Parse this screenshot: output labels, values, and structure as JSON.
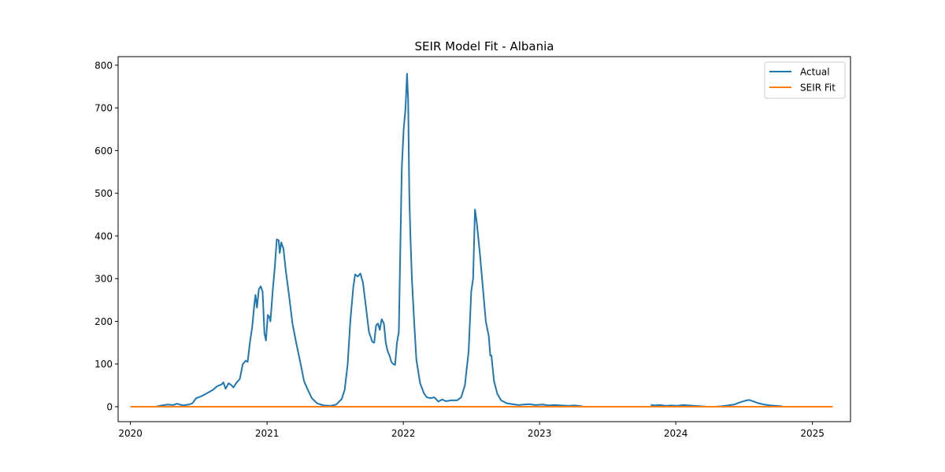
{
  "chart_data": {
    "type": "line",
    "title": "SEIR Model Fit - Albania",
    "xlabel": "",
    "ylabel": "",
    "x_axis": {
      "type": "date",
      "range": [
        "2019-11-29",
        "2025-04-13"
      ],
      "ticks": [
        {
          "date": "2020-01-01",
          "label": "2020"
        },
        {
          "date": "2021-01-01",
          "label": "2021"
        },
        {
          "date": "2022-01-01",
          "label": "2022"
        },
        {
          "date": "2023-01-01",
          "label": "2023"
        },
        {
          "date": "2024-01-01",
          "label": "2024"
        },
        {
          "date": "2025-01-01",
          "label": "2025"
        }
      ]
    },
    "y_axis": {
      "range": [
        -35,
        820
      ],
      "ticks": [
        0,
        100,
        200,
        300,
        400,
        500,
        600,
        700,
        800
      ]
    },
    "grid": false,
    "legend": {
      "placement": "top-right",
      "entries": [
        "Actual",
        "SEIR Fit"
      ]
    },
    "series": [
      {
        "name": "Actual",
        "color": "#1f77b4",
        "segments": [
          [
            [
              "2020-03-09",
              0
            ],
            [
              "2020-03-25",
              3
            ],
            [
              "2020-04-10",
              5
            ],
            [
              "2020-04-25",
              4
            ],
            [
              "2020-05-05",
              7
            ],
            [
              "2020-05-20",
              3
            ],
            [
              "2020-06-05",
              5
            ],
            [
              "2020-06-15",
              8
            ],
            [
              "2020-06-25",
              20
            ],
            [
              "2020-07-10",
              25
            ],
            [
              "2020-07-25",
              32
            ],
            [
              "2020-08-10",
              40
            ],
            [
              "2020-08-20",
              48
            ],
            [
              "2020-09-01",
              52
            ],
            [
              "2020-09-06",
              57
            ],
            [
              "2020-09-12",
              42
            ],
            [
              "2020-09-20",
              55
            ],
            [
              "2020-09-28",
              50
            ],
            [
              "2020-10-03",
              45
            ],
            [
              "2020-10-10",
              55
            ],
            [
              "2020-10-20",
              65
            ],
            [
              "2020-10-28",
              100
            ],
            [
              "2020-11-05",
              108
            ],
            [
              "2020-11-10",
              105
            ],
            [
              "2020-11-16",
              150
            ],
            [
              "2020-11-22",
              185
            ],
            [
              "2020-11-28",
              240
            ],
            [
              "2020-12-01",
              262
            ],
            [
              "2020-12-05",
              232
            ],
            [
              "2020-12-10",
              275
            ],
            [
              "2020-12-15",
              282
            ],
            [
              "2020-12-20",
              270
            ],
            [
              "2020-12-25",
              172
            ],
            [
              "2020-12-29",
              155
            ],
            [
              "2021-01-03",
              215
            ],
            [
              "2021-01-07",
              210
            ],
            [
              "2021-01-10",
              200
            ],
            [
              "2021-01-16",
              270
            ],
            [
              "2021-01-22",
              330
            ],
            [
              "2021-01-27",
              392
            ],
            [
              "2021-02-01",
              390
            ],
            [
              "2021-02-04",
              360
            ],
            [
              "2021-02-08",
              385
            ],
            [
              "2021-02-14",
              370
            ],
            [
              "2021-02-20",
              320
            ],
            [
              "2021-03-01",
              260
            ],
            [
              "2021-03-10",
              195
            ],
            [
              "2021-03-20",
              150
            ],
            [
              "2021-04-01",
              100
            ],
            [
              "2021-04-10",
              60
            ],
            [
              "2021-04-20",
              40
            ],
            [
              "2021-05-01",
              20
            ],
            [
              "2021-05-15",
              8
            ],
            [
              "2021-06-01",
              3
            ],
            [
              "2021-06-20",
              2
            ],
            [
              "2021-07-05",
              5
            ],
            [
              "2021-07-20",
              18
            ],
            [
              "2021-07-28",
              40
            ],
            [
              "2021-08-05",
              100
            ],
            [
              "2021-08-12",
              200
            ],
            [
              "2021-08-20",
              280
            ],
            [
              "2021-08-25",
              310
            ],
            [
              "2021-09-01",
              305
            ],
            [
              "2021-09-08",
              312
            ],
            [
              "2021-09-15",
              290
            ],
            [
              "2021-09-22",
              240
            ],
            [
              "2021-10-01",
              175
            ],
            [
              "2021-10-10",
              152
            ],
            [
              "2021-10-15",
              150
            ],
            [
              "2021-10-20",
              190
            ],
            [
              "2021-10-25",
              195
            ],
            [
              "2021-10-30",
              180
            ],
            [
              "2021-11-04",
              205
            ],
            [
              "2021-11-10",
              195
            ],
            [
              "2021-11-15",
              150
            ],
            [
              "2021-11-20",
              130
            ],
            [
              "2021-11-25",
              120
            ],
            [
              "2021-11-30",
              105
            ],
            [
              "2021-12-05",
              100
            ],
            [
              "2021-12-10",
              98
            ],
            [
              "2021-12-15",
              150
            ],
            [
              "2021-12-20",
              175
            ],
            [
              "2021-12-25",
              420
            ],
            [
              "2021-12-28",
              560
            ],
            [
              "2022-01-02",
              650
            ],
            [
              "2022-01-07",
              700
            ],
            [
              "2022-01-11",
              780
            ],
            [
              "2022-01-14",
              720
            ],
            [
              "2022-01-17",
              500
            ],
            [
              "2022-01-20",
              400
            ],
            [
              "2022-01-24",
              300
            ],
            [
              "2022-01-30",
              200
            ],
            [
              "2022-02-05",
              110
            ],
            [
              "2022-02-15",
              55
            ],
            [
              "2022-02-25",
              32
            ],
            [
              "2022-03-05",
              22
            ],
            [
              "2022-03-15",
              20
            ],
            [
              "2022-03-25",
              22
            ],
            [
              "2022-04-05",
              12
            ],
            [
              "2022-04-15",
              17
            ],
            [
              "2022-04-25",
              13
            ],
            [
              "2022-05-10",
              15
            ],
            [
              "2022-05-25",
              15
            ],
            [
              "2022-06-05",
              22
            ],
            [
              "2022-06-15",
              50
            ],
            [
              "2022-06-25",
              130
            ],
            [
              "2022-07-02",
              270
            ],
            [
              "2022-07-07",
              300
            ],
            [
              "2022-07-12",
              462
            ],
            [
              "2022-07-17",
              430
            ],
            [
              "2022-07-25",
              360
            ],
            [
              "2022-08-01",
              290
            ],
            [
              "2022-08-10",
              200
            ],
            [
              "2022-08-18",
              165
            ],
            [
              "2022-08-22",
              120
            ],
            [
              "2022-08-25",
              120
            ],
            [
              "2022-09-01",
              60
            ],
            [
              "2022-09-10",
              30
            ],
            [
              "2022-09-20",
              15
            ],
            [
              "2022-10-05",
              8
            ],
            [
              "2022-10-20",
              6
            ],
            [
              "2022-11-05",
              4
            ],
            [
              "2022-11-20",
              5
            ],
            [
              "2022-12-05",
              6
            ],
            [
              "2022-12-20",
              4
            ],
            [
              "2023-01-10",
              5
            ],
            [
              "2023-01-25",
              3
            ],
            [
              "2023-02-10",
              4
            ],
            [
              "2023-03-01",
              3
            ],
            [
              "2023-03-20",
              2
            ],
            [
              "2023-04-05",
              3
            ],
            [
              "2023-04-25",
              1
            ]
          ],
          [
            [
              "2023-10-28",
              4
            ],
            [
              "2023-11-05",
              3
            ],
            [
              "2023-11-20",
              4
            ],
            [
              "2023-12-05",
              2
            ],
            [
              "2023-12-20",
              3
            ],
            [
              "2024-01-05",
              2
            ],
            [
              "2024-01-20",
              4
            ],
            [
              "2024-02-05",
              3
            ],
            [
              "2024-02-20",
              2
            ],
            [
              "2024-03-10",
              1
            ],
            [
              "2024-03-25",
              0
            ],
            [
              "2024-04-15",
              0
            ],
            [
              "2024-05-01",
              1
            ],
            [
              "2024-05-20",
              3
            ],
            [
              "2024-06-05",
              5
            ],
            [
              "2024-06-20",
              10
            ],
            [
              "2024-07-05",
              14
            ],
            [
              "2024-07-15",
              16
            ],
            [
              "2024-07-25",
              13
            ],
            [
              "2024-08-10",
              8
            ],
            [
              "2024-08-25",
              5
            ],
            [
              "2024-09-10",
              3
            ],
            [
              "2024-09-25",
              2
            ],
            [
              "2024-10-10",
              1
            ]
          ]
        ]
      },
      {
        "name": "SEIR Fit",
        "color": "#ff7f0e",
        "segments": [
          [
            [
              "2020-01-03",
              0
            ],
            [
              "2025-02-22",
              0
            ]
          ]
        ]
      }
    ]
  }
}
